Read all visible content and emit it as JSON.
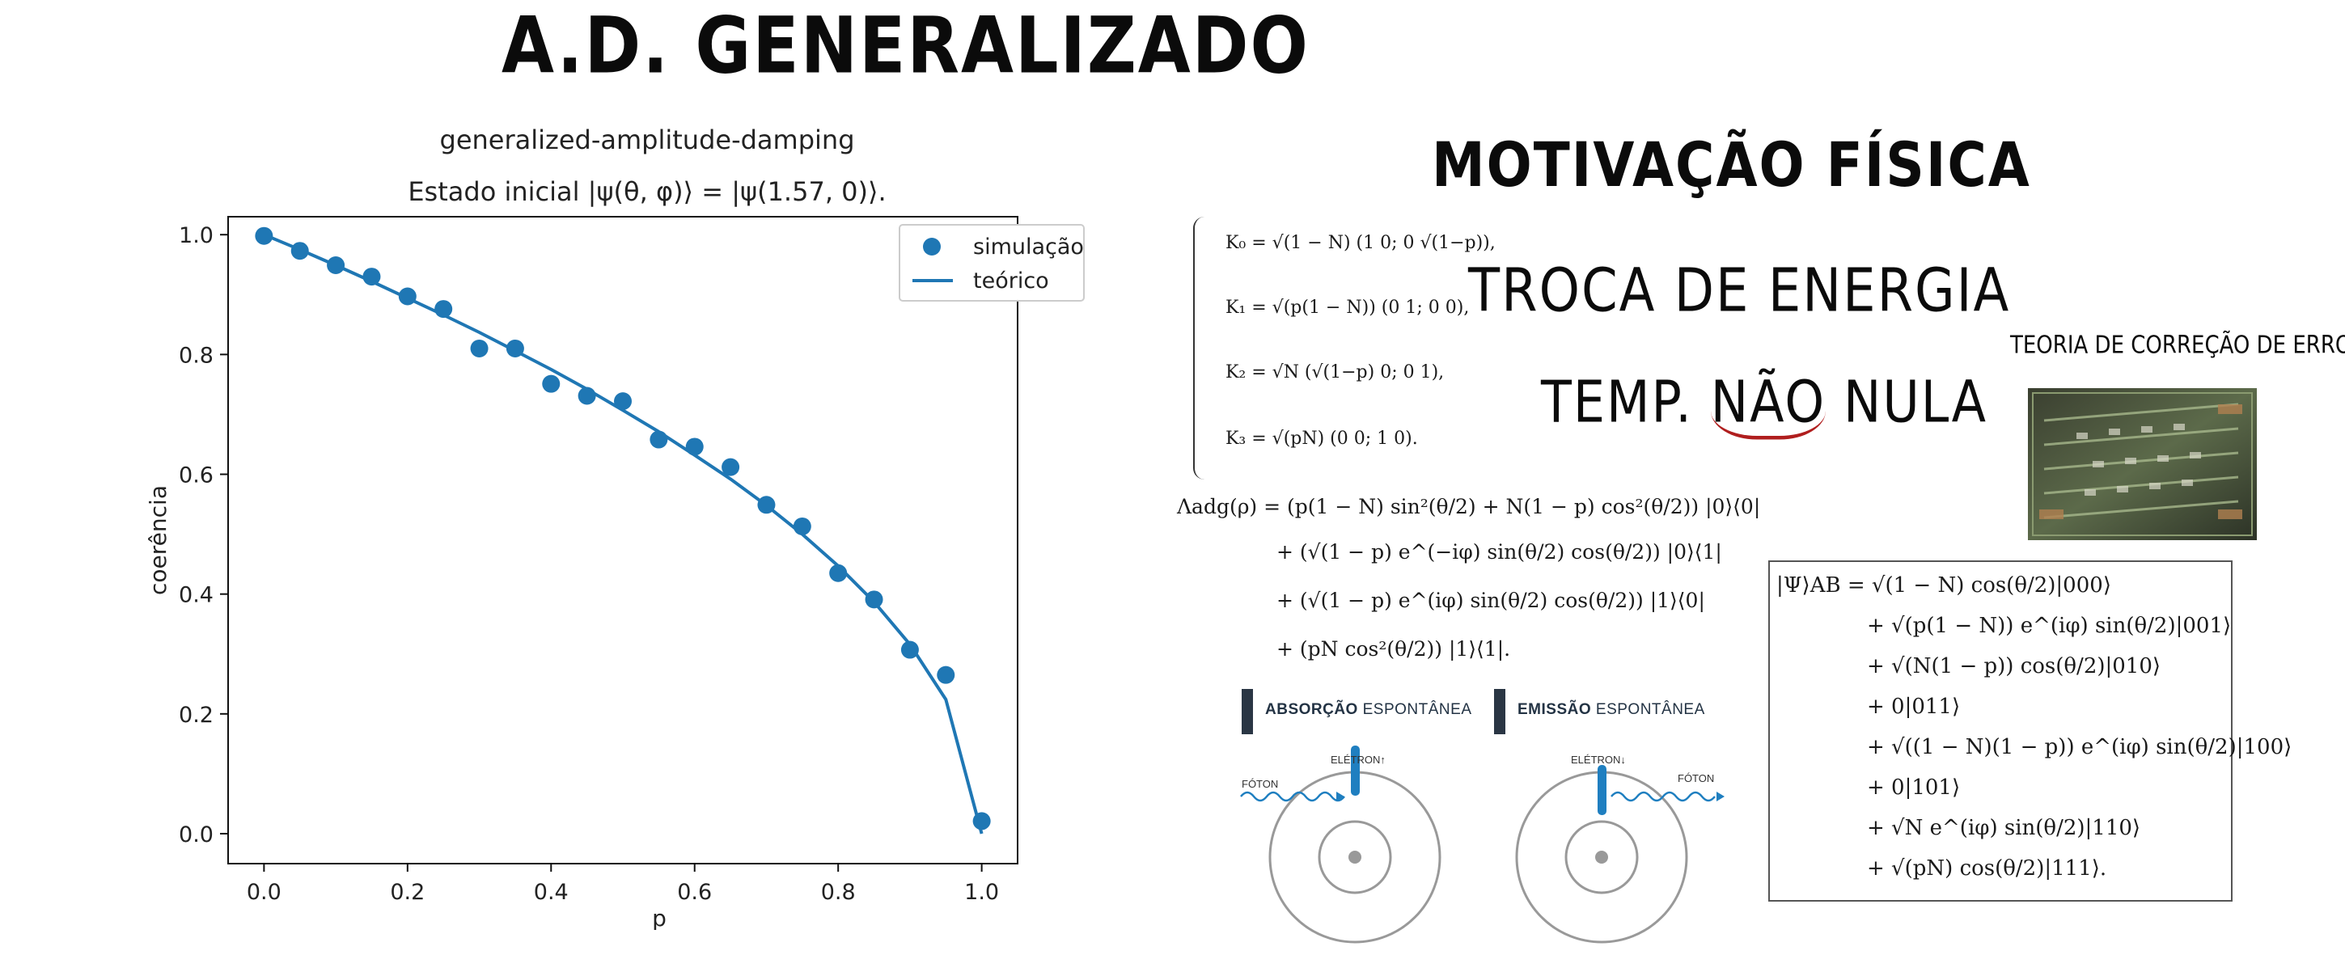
{
  "headings": {
    "main": "A.D. GENERALIZADO",
    "motivation": "MOTIVAÇÃO FÍSICA",
    "energy": "TROCA DE ENERGIA",
    "temp_prefix": "TEMP.",
    "temp_nao": "NÃO",
    "temp_suffix": "NULA",
    "error_theory": "TEORIA DE CORREÇÃO DE ERROS"
  },
  "chart_data": {
    "type": "scatter",
    "title": "generalized-amplitude-damping",
    "subtitle": "Estado inicial |ψ(θ, φ)⟩ = |ψ(1.57, 0)⟩.",
    "xlabel": "p",
    "ylabel": "coerência",
    "xlim": [
      -0.05,
      1.05
    ],
    "ylim": [
      -0.05,
      1.03
    ],
    "xticks": [
      "0.0",
      "0.2",
      "0.4",
      "0.6",
      "0.8",
      "1.0"
    ],
    "yticks": [
      "0.0",
      "0.2",
      "0.4",
      "0.6",
      "0.8",
      "1.0"
    ],
    "legend_position": "top-right",
    "grid": false,
    "color": "#1f77b4",
    "series": [
      {
        "name": "simulação",
        "kind": "scatter",
        "x": [
          0.0,
          0.05,
          0.1,
          0.15,
          0.2,
          0.25,
          0.3,
          0.35,
          0.4,
          0.45,
          0.5,
          0.55,
          0.6,
          0.65,
          0.7,
          0.75,
          0.8,
          0.85,
          0.9,
          0.95,
          1.0
        ],
        "y": [
          0.998,
          0.973,
          0.949,
          0.93,
          0.897,
          0.876,
          0.81,
          0.81,
          0.751,
          0.731,
          0.722,
          0.658,
          0.646,
          0.612,
          0.549,
          0.513,
          0.435,
          0.391,
          0.307,
          0.265,
          0.021
        ]
      },
      {
        "name": "teórico",
        "kind": "line",
        "x": [
          0.0,
          0.05,
          0.1,
          0.15,
          0.2,
          0.25,
          0.3,
          0.35,
          0.4,
          0.45,
          0.5,
          0.55,
          0.6,
          0.65,
          0.7,
          0.75,
          0.8,
          0.85,
          0.9,
          0.95,
          1.0
        ],
        "y": [
          1.0,
          0.975,
          0.949,
          0.922,
          0.894,
          0.866,
          0.837,
          0.806,
          0.775,
          0.742,
          0.707,
          0.671,
          0.632,
          0.592,
          0.548,
          0.5,
          0.447,
          0.387,
          0.316,
          0.224,
          0.0
        ]
      }
    ]
  },
  "kraus": {
    "k0": "K₀ = √(1 − N) (1 0; 0 √(1−p)),",
    "k1": "K₁ = √(p(1 − N)) (0 1; 0 0),",
    "k2": "K₂ = √N (√(1−p) 0; 0 1),",
    "k3": "K₃ = √(pN) (0 0; 1 0)."
  },
  "channel": {
    "line1": "Λadg(ρ) = (p(1 − N) sin²(θ/2) + N(1 − p) cos²(θ/2)) |0⟩⟨0|",
    "line2": "+ (√(1 − p) e^(−iφ) sin(θ/2) cos(θ/2)) |0⟩⟨1|",
    "line3": "+ (√(1 − p) e^(iφ) sin(θ/2) cos(θ/2)) |1⟩⟨0|",
    "line4": "+ (pN cos²(θ/2)) |1⟩⟨1|."
  },
  "state": {
    "l1": "|Ψ⟩AB = √(1 − N) cos(θ/2)|000⟩",
    "l2": "+ √(p(1 − N)) e^(iφ) sin(θ/2)|001⟩",
    "l3": "+ √(N(1 − p)) cos(θ/2)|010⟩",
    "l4": "+ 0|011⟩",
    "l5": "+ √((1 − N)(1 − p)) e^(iφ) sin(θ/2)|100⟩",
    "l6": "+ 0|101⟩",
    "l7": "+ √N e^(iφ) sin(θ/2)|110⟩",
    "l8": "+ √(pN) cos(θ/2)|111⟩."
  },
  "diagrams": {
    "absorption_bold": "ABSORÇÃO",
    "absorption_light": "ESPONTÂNEA",
    "emission_bold": "EMISSÃO",
    "emission_light": "ESPONTÂNEA",
    "foton": "FÓTON",
    "eletron_up": "ELÉTRON↑",
    "eletron_down": "ELÉTRON↓"
  }
}
